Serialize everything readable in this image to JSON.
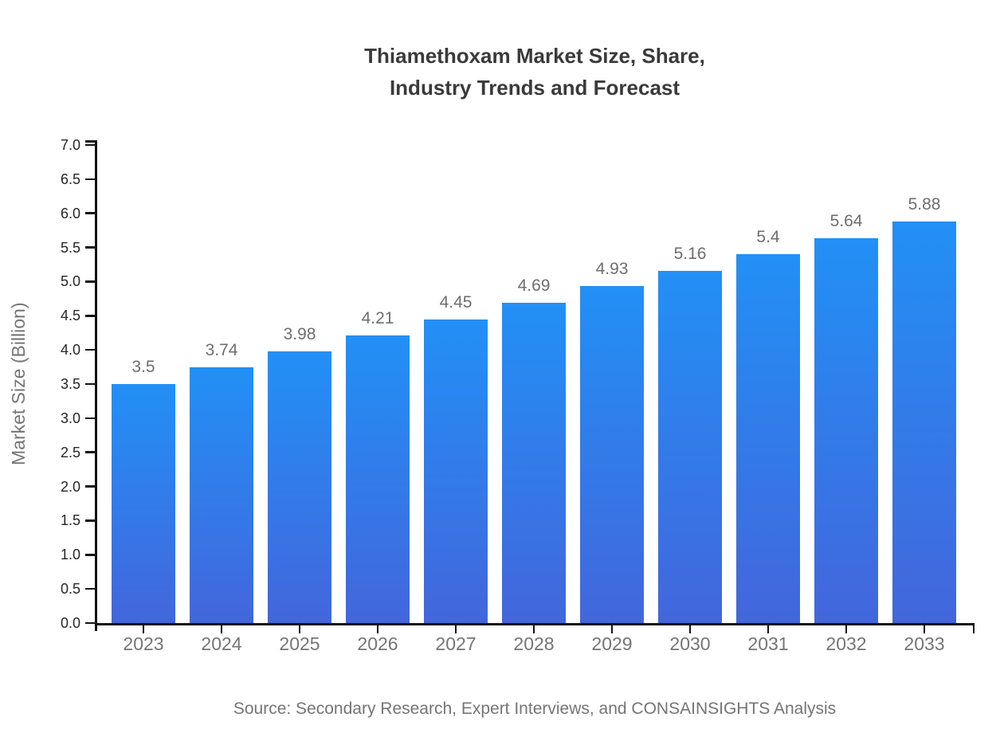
{
  "title": {
    "line1": "Thiamethoxam Market Size, Share,",
    "line2": "Industry Trends and Forecast"
  },
  "source": "Source: Secondary Research, Expert Interviews, and CONSAINSIGHTS Analysis",
  "chart_data": {
    "type": "bar",
    "title": "Thiamethoxam Market Size, Share, Industry Trends and Forecast",
    "categories": [
      "2023",
      "2024",
      "2025",
      "2026",
      "2027",
      "2028",
      "2029",
      "2030",
      "2031",
      "2032",
      "2033"
    ],
    "values": [
      3.5,
      3.74,
      3.98,
      4.21,
      4.45,
      4.69,
      4.93,
      5.16,
      5.4,
      5.64,
      5.88
    ],
    "bar_labels": [
      "3.5",
      "3.74",
      "3.98",
      "4.21",
      "4.45",
      "4.69",
      "4.93",
      "5.16",
      "5.4",
      "5.64",
      "5.88"
    ],
    "xlabel": "",
    "ylabel": "Market Size (Billion)",
    "ylim": [
      0,
      7
    ],
    "ytick_step": 0.5,
    "grid": false,
    "legend": false,
    "colors": {
      "bar_top": "#2290f6",
      "bar_bottom": "#4366dc",
      "axis": "#141414",
      "title_text": "#3a3a3a",
      "ytick_text": "#262626",
      "xtick_text": "#757575",
      "value_text": "#6e6e6e",
      "source_text": "#757575"
    }
  }
}
